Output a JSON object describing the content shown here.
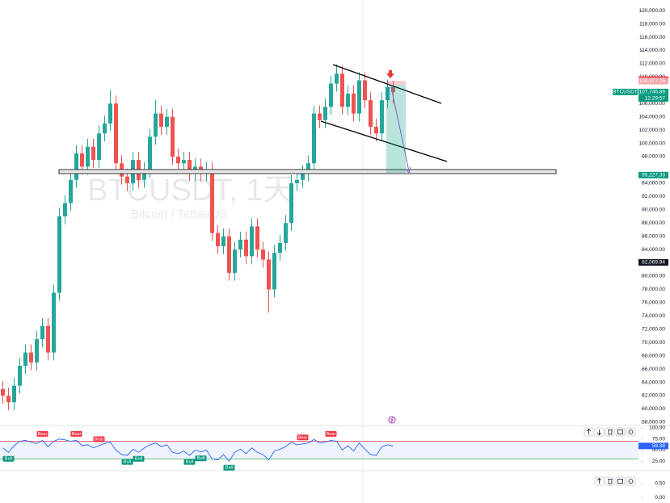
{
  "watermark": {
    "symbol": "BTCUSDT, 1天",
    "description": "Bitcoin / TetherUS"
  },
  "chart_data": {
    "type": "candlestick",
    "up_color": "#26a69a",
    "down_color": "#ef5350",
    "candles": [
      [
        63000,
        64200,
        60800,
        62000
      ],
      [
        62000,
        63200,
        59800,
        61000
      ],
      [
        61000,
        64700,
        59800,
        63500
      ],
      [
        63500,
        67700,
        62300,
        66500
      ],
      [
        66500,
        69700,
        65300,
        68500
      ],
      [
        68500,
        69700,
        65800,
        67000
      ],
      [
        67000,
        71700,
        65800,
        70500
      ],
      [
        70500,
        73700,
        69300,
        72500
      ],
      [
        72500,
        73700,
        67300,
        68500
      ],
      [
        68500,
        78700,
        67300,
        77500
      ],
      [
        77500,
        90200,
        76300,
        89000
      ],
      [
        89000,
        92200,
        87800,
        91000
      ],
      [
        91000,
        95700,
        89800,
        94500
      ],
      [
        94500,
        99700,
        93300,
        98500
      ],
      [
        98500,
        99700,
        95300,
        96500
      ],
      [
        96500,
        100700,
        95300,
        99500
      ],
      [
        99500,
        100700,
        96300,
        97500
      ],
      [
        97500,
        102700,
        96300,
        101500
      ],
      [
        101500,
        104200,
        100300,
        103000
      ],
      [
        103000,
        108000,
        101800,
        106000
      ],
      [
        106000,
        107200,
        95800,
        97000
      ],
      [
        97000,
        98200,
        93800,
        95000
      ],
      [
        95000,
        96200,
        92800,
        94000
      ],
      [
        94000,
        98700,
        92800,
        97500
      ],
      [
        97500,
        98700,
        93300,
        94500
      ],
      [
        94500,
        97200,
        93300,
        96000
      ],
      [
        96000,
        102200,
        94800,
        101000
      ],
      [
        101000,
        106500,
        99800,
        104500
      ],
      [
        104500,
        105700,
        101300,
        102500
      ],
      [
        102500,
        105200,
        101300,
        104000
      ],
      [
        104000,
        105200,
        96800,
        98000
      ],
      [
        98000,
        99200,
        95800,
        97000
      ],
      [
        97000,
        98700,
        95800,
        97500
      ],
      [
        97500,
        98700,
        94300,
        95500
      ],
      [
        95500,
        97700,
        94300,
        96500
      ],
      [
        96500,
        97700,
        94300,
        95500
      ],
      [
        95500,
        97200,
        94300,
        96000
      ],
      [
        96000,
        97200,
        85300,
        86500
      ],
      [
        86500,
        87700,
        83300,
        84500
      ],
      [
        84500,
        87200,
        83300,
        86000
      ],
      [
        86000,
        87200,
        79300,
        80500
      ],
      [
        80500,
        85200,
        79300,
        84000
      ],
      [
        84000,
        86700,
        82800,
        85500
      ],
      [
        85500,
        86700,
        81800,
        83000
      ],
      [
        83000,
        88700,
        81800,
        87500
      ],
      [
        87500,
        88700,
        82800,
        84000
      ],
      [
        84000,
        85200,
        81300,
        82500
      ],
      [
        82500,
        83700,
        74500,
        78000
      ],
      [
        78000,
        84700,
        76800,
        83500
      ],
      [
        83500,
        86200,
        82300,
        85000
      ],
      [
        85000,
        89200,
        83800,
        88000
      ],
      [
        88000,
        95200,
        86800,
        94000
      ],
      [
        94000,
        95700,
        92800,
        94500
      ],
      [
        94500,
        96700,
        93300,
        95500
      ],
      [
        95500,
        98200,
        94300,
        97000
      ],
      [
        97000,
        105700,
        95800,
        104500
      ],
      [
        104500,
        105700,
        102300,
        103500
      ],
      [
        103500,
        106700,
        102300,
        105500
      ],
      [
        105500,
        110200,
        104300,
        109000
      ],
      [
        109000,
        111900,
        107800,
        110500
      ],
      [
        110500,
        111700,
        104300,
        105500
      ],
      [
        105500,
        108700,
        104300,
        107500
      ],
      [
        107500,
        108700,
        103300,
        104500
      ],
      [
        104500,
        110700,
        103300,
        109500
      ],
      [
        109500,
        110700,
        105300,
        106500
      ],
      [
        106500,
        107700,
        101300,
        102500
      ],
      [
        102500,
        103700,
        100300,
        101500
      ],
      [
        101500,
        107700,
        100300,
        106500
      ],
      [
        106500,
        109611.08,
        105300,
        108500
      ],
      [
        108500,
        109377.25,
        106000,
        107746.89
      ]
    ],
    "ylim": [
      57500,
      121600
    ],
    "yticks": [
      {
        "value": 120000,
        "label": "120,000.00"
      },
      {
        "value": 118000,
        "label": "118,000.00"
      },
      {
        "value": 116000,
        "label": "116,000.00"
      },
      {
        "value": 114000,
        "label": "114,000.00"
      },
      {
        "value": 112000,
        "label": "112,000.00"
      },
      {
        "value": 110000,
        "label": "110,000.00"
      },
      {
        "value": 106000,
        "label": "106,000.00"
      },
      {
        "value": 104000,
        "label": "104,000.00"
      },
      {
        "value": 102000,
        "label": "102,000.00"
      },
      {
        "value": 100000,
        "label": "100,000.00"
      },
      {
        "value": 98000,
        "label": "98,000.00"
      },
      {
        "value": 94000,
        "label": "94,000.00"
      },
      {
        "value": 92000,
        "label": "92,000.00"
      },
      {
        "value": 90000,
        "label": "90,000.00"
      },
      {
        "value": 88000,
        "label": "88,000.00"
      },
      {
        "value": 86000,
        "label": "86,000.00"
      },
      {
        "value": 84000,
        "label": "84,000.00"
      },
      {
        "value": 80000,
        "label": "80,000.00"
      },
      {
        "value": 78000,
        "label": "78,000.00"
      },
      {
        "value": 76000,
        "label": "76,000.00"
      },
      {
        "value": 74000,
        "label": "74,000.00"
      },
      {
        "value": 72000,
        "label": "72,000.00"
      },
      {
        "value": 70000,
        "label": "70,000.00"
      },
      {
        "value": 68000,
        "label": "68,000.00"
      },
      {
        "value": 66000,
        "label": "66,000.00"
      },
      {
        "value": 64000,
        "label": "64,000.00"
      },
      {
        "value": 62000,
        "label": "62,000.00"
      },
      {
        "value": 60000,
        "label": "60,000.00"
      },
      {
        "value": 58000,
        "label": "58,000.00"
      }
    ],
    "price_labels": [
      {
        "value": 109611.08,
        "label": "109,611.08",
        "color": "#f23645"
      },
      {
        "value": 109377.25,
        "label": "109,377.25",
        "color": "#f7a5a9"
      },
      {
        "value": 107746.89,
        "label": "107,746.89",
        "color": "#089981"
      },
      {
        "value": 95227.33,
        "label": "95,227.33",
        "color": "#089981"
      },
      {
        "value": 82069.94,
        "label": "82,069.94",
        "color": "#131722"
      }
    ],
    "symbol_tag": "BTCUSDT",
    "countdown": "12:29:57",
    "rsi": {
      "color": "#2962ff",
      "upper": 70,
      "lower": 30,
      "ylim": [
        3.6,
        105.5
      ],
      "yticks": [
        {
          "value": 100,
          "label": "100.00"
        },
        {
          "value": 75,
          "label": "75.00"
        },
        {
          "value": 50,
          "label": "50.00"
        },
        {
          "value": 25,
          "label": "25.00"
        }
      ],
      "values": [
        55,
        45,
        60,
        70,
        72,
        68,
        65,
        72,
        58,
        70,
        75,
        73,
        70,
        72,
        60,
        62,
        55,
        60,
        65,
        68,
        50,
        40,
        38,
        52,
        45,
        55,
        62,
        66,
        58,
        62,
        45,
        42,
        48,
        38,
        50,
        46,
        50,
        30,
        28,
        40,
        25,
        45,
        52,
        42,
        55,
        45,
        40,
        28,
        48,
        52,
        58,
        68,
        62,
        64,
        66,
        74,
        66,
        68,
        72,
        70,
        50,
        60,
        48,
        66,
        52,
        40,
        38,
        58,
        62,
        59.38
      ],
      "signals": [
        null,
        "Bull",
        null,
        null,
        null,
        null,
        null,
        "Bear",
        null,
        null,
        null,
        null,
        null,
        "Bear",
        null,
        null,
        null,
        "Bear",
        null,
        null,
        null,
        null,
        "Bull",
        null,
        "Bull",
        null,
        null,
        null,
        null,
        null,
        null,
        null,
        null,
        "Bull",
        null,
        "Bull",
        null,
        null,
        null,
        null,
        "Bull",
        null,
        null,
        null,
        null,
        null,
        null,
        null,
        null,
        null,
        null,
        null,
        null,
        "Bear",
        null,
        null,
        null,
        null,
        "Bear",
        null,
        null,
        null,
        null,
        null,
        null,
        null,
        null,
        null,
        null,
        null
      ]
    },
    "lower_pane": {
      "ylim": [
        -0.1,
        0.95
      ],
      "yticks": [
        {
          "value": 0.5,
          "label": "0.50"
        },
        {
          "value": 0,
          "label": "0.00"
        }
      ]
    }
  }
}
